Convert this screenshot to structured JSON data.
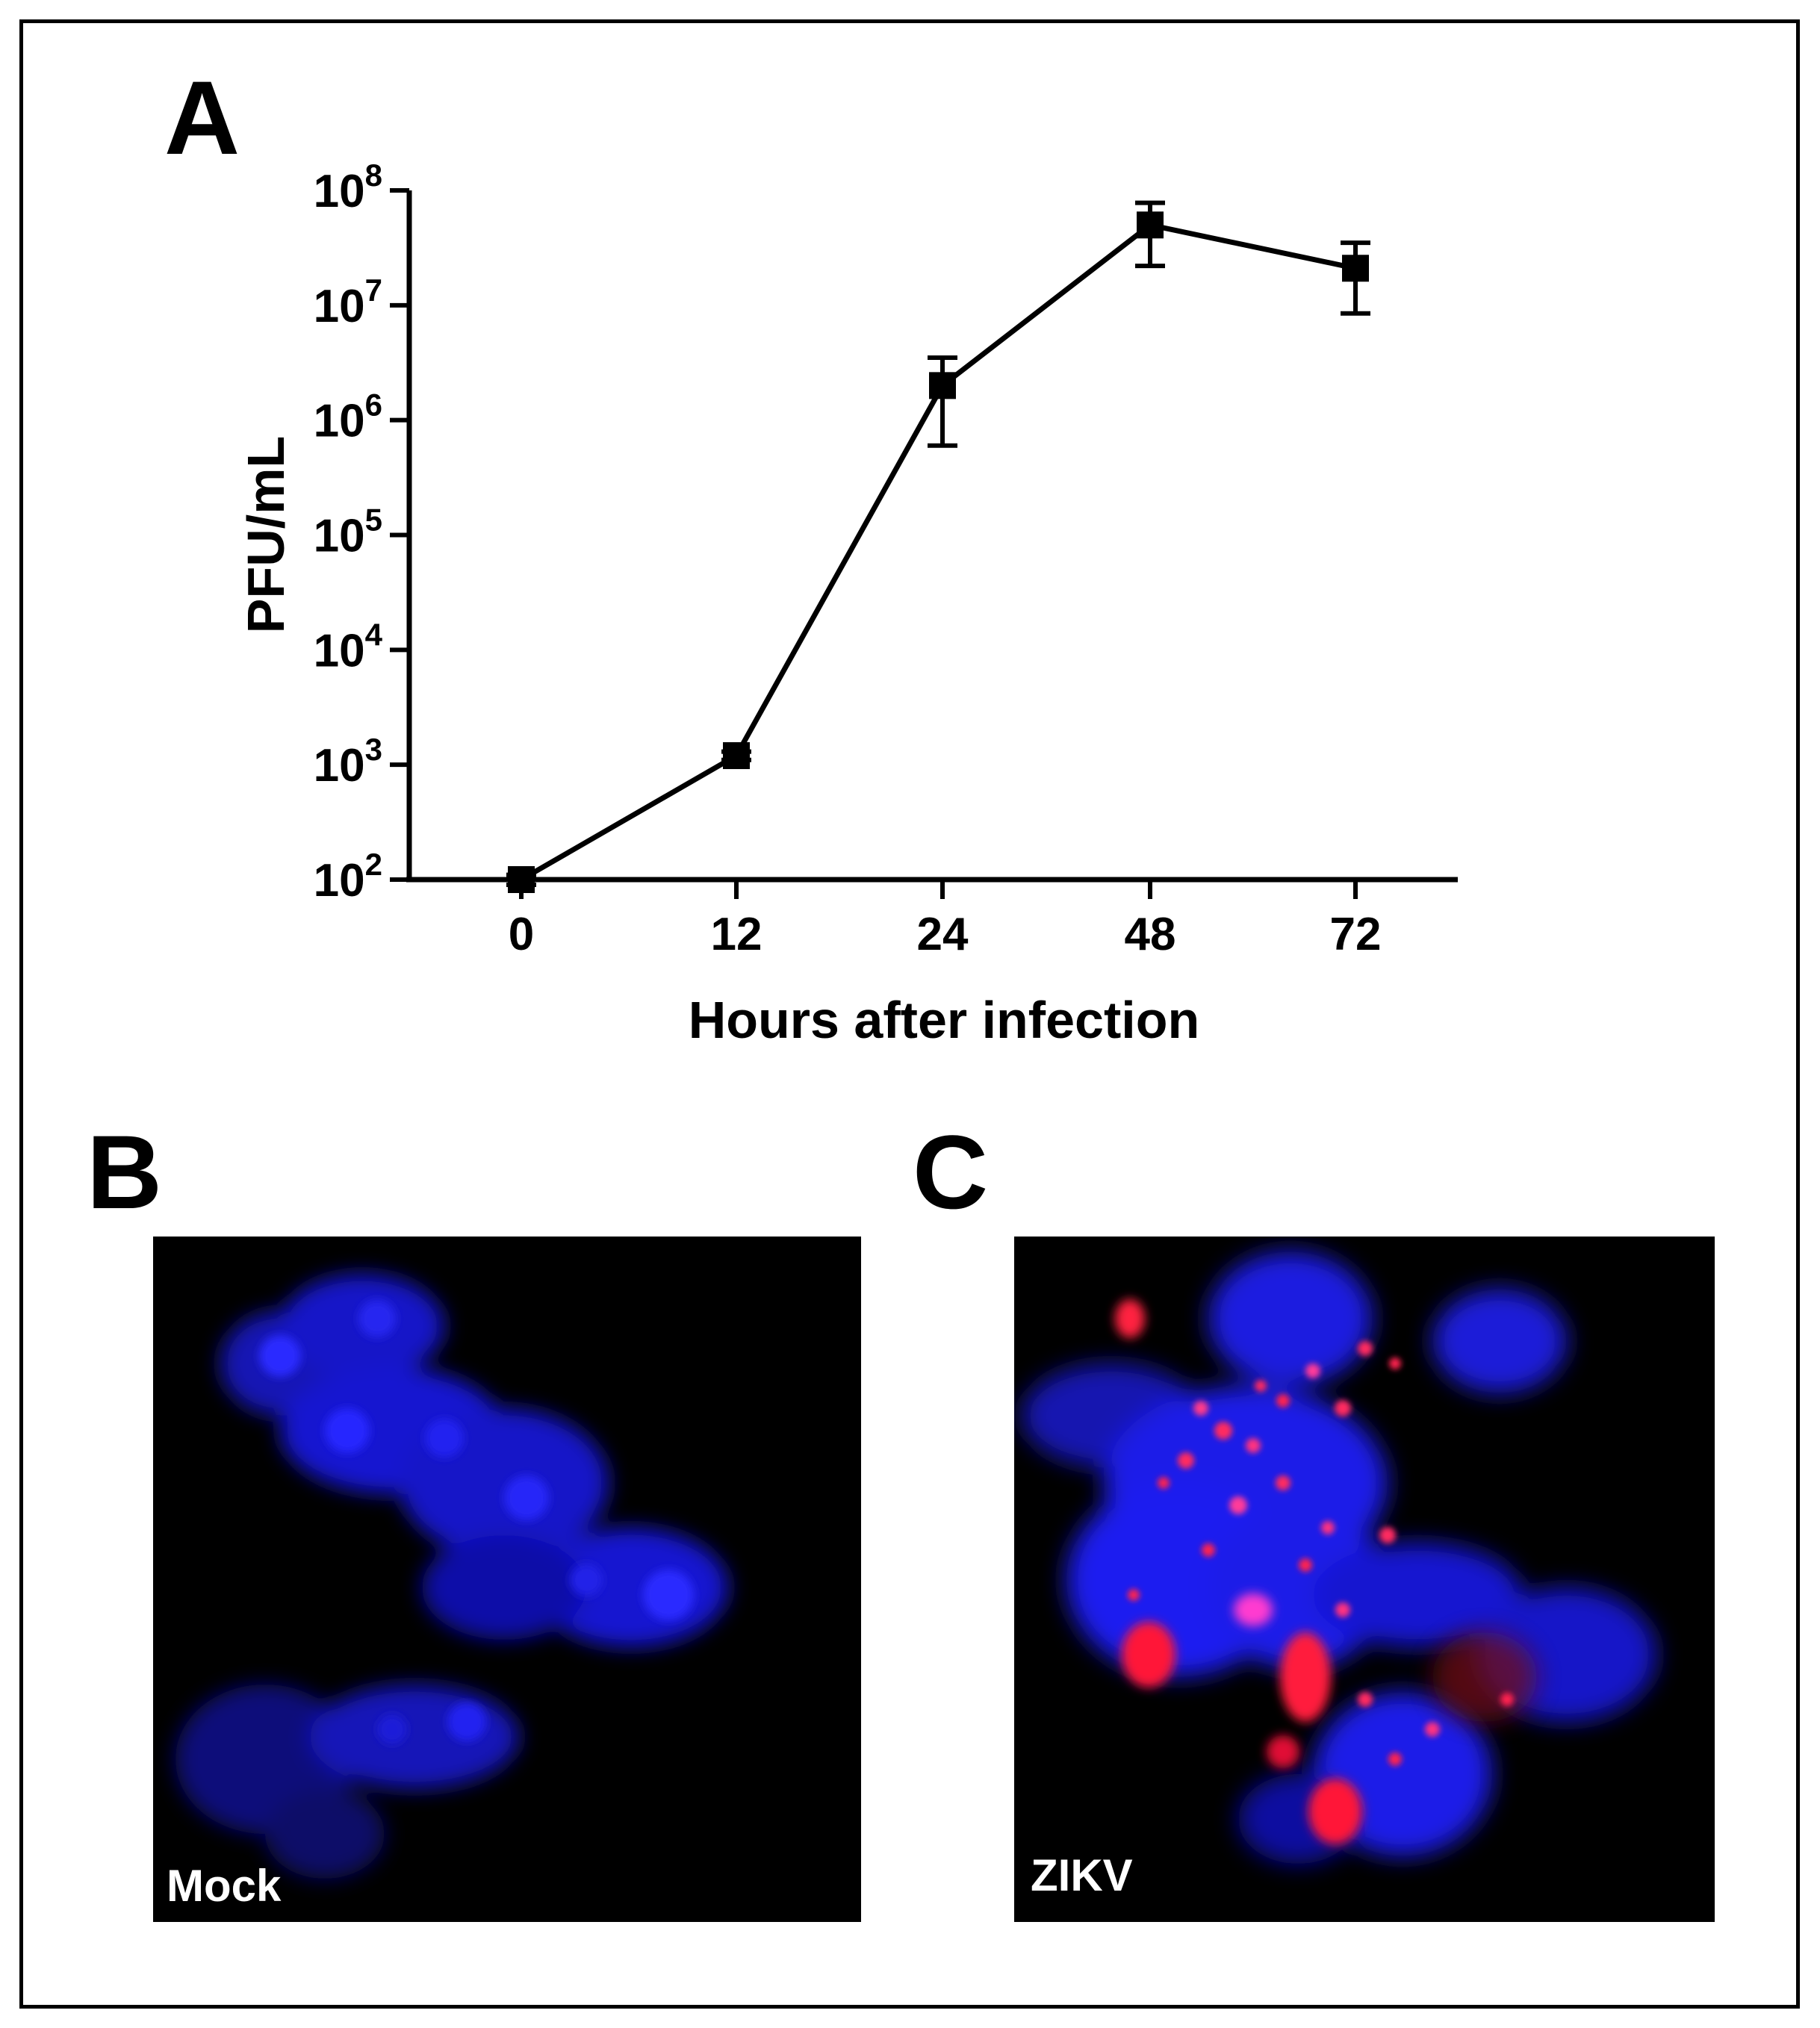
{
  "panels": {
    "a_letter": "A",
    "b_letter": "B",
    "c_letter": "C",
    "b_label": "Mock",
    "c_label": "ZIKV"
  },
  "colors": {
    "nucleus_stain": "#1a1aff",
    "virus_stain": "#ff1a3c",
    "micrograph_background": "#000000"
  },
  "chart_data": {
    "type": "line",
    "xlabel": "Hours after infection",
    "ylabel": "PFU/mL",
    "y_scale": "log",
    "ylim": [
      100,
      100000000
    ],
    "y_ticks": [
      {
        "base": "10",
        "exp": "2",
        "value": 100
      },
      {
        "base": "10",
        "exp": "3",
        "value": 1000
      },
      {
        "base": "10",
        "exp": "4",
        "value": 10000
      },
      {
        "base": "10",
        "exp": "5",
        "value": 100000
      },
      {
        "base": "10",
        "exp": "6",
        "value": 1000000
      },
      {
        "base": "10",
        "exp": "7",
        "value": 10000000
      },
      {
        "base": "10",
        "exp": "8",
        "value": 100000000
      }
    ],
    "categories": [
      "0",
      "12",
      "24",
      "48",
      "72"
    ],
    "series": [
      {
        "values": [
          100,
          1200,
          2000000,
          50000000,
          21000000
        ],
        "error_low": [
          90,
          1100,
          600000,
          22000000,
          8500000
        ],
        "error_high": [
          110,
          1300,
          3500000,
          78000000,
          35000000
        ],
        "marker": "square"
      }
    ],
    "grid": false,
    "legend": "none"
  }
}
